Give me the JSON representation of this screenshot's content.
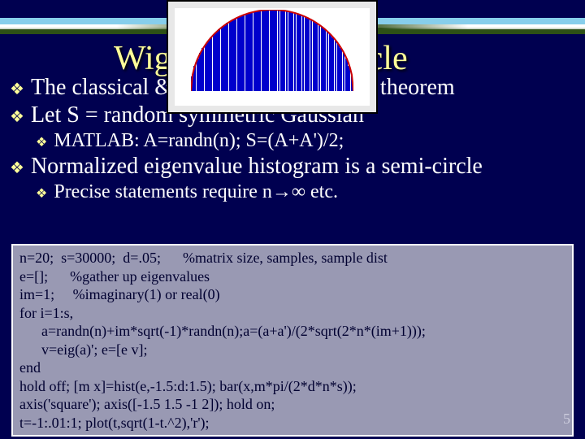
{
  "title": "Wigner's Semi-Circle",
  "bullets": [
    {
      "text": "The classical & most famous rand eig theorem",
      "level": 0
    },
    {
      "text": "Let S = random symmetric Gaussian",
      "level": 0
    },
    {
      "text": "MATLAB: A=randn(n);  S=(A+A')/2;",
      "level": 1
    },
    {
      "text": "Normalized eigenvalue histogram is a semi-circle",
      "level": 0
    },
    {
      "text": "Precise statements require n→∞ etc.",
      "level": 1
    }
  ],
  "code": [
    "n=20;  s=30000;  d=.05;      %matrix size, samples, sample dist",
    "e=[];      %gather up eigenvalues",
    "im=1;     %imaginary(1) or real(0)",
    "for i=1:s,",
    "  a=randn(n)+im*sqrt(-1)*randn(n);a=(a+a')/(2*sqrt(2*n*(im+1)));",
    "  v=eig(a)'; e=[e v];",
    "end",
    "hold off; [m x]=hist(e,-1.5:d:1.5); bar(x,m*pi/(2*d*n*s));",
    "axis('square'); axis([-1.5 1.5 -1 2]); hold on;",
    "t=-1:.01:1; plot(t,sqrt(1-t.^2),'r');"
  ],
  "page_number": "5",
  "semicircle": {
    "num_bars": 60,
    "bar_color": "#0000cc",
    "arc_color": "#cc0000",
    "background": "#ffffff",
    "frame_bg": "#e8e8e8"
  },
  "colors": {
    "slide_bg": "#000050",
    "title": "#ffff99",
    "text": "#ffffff",
    "codebox_bg": "#9999b3",
    "codebox_border": "#ffffff",
    "code_text": "#000030"
  }
}
